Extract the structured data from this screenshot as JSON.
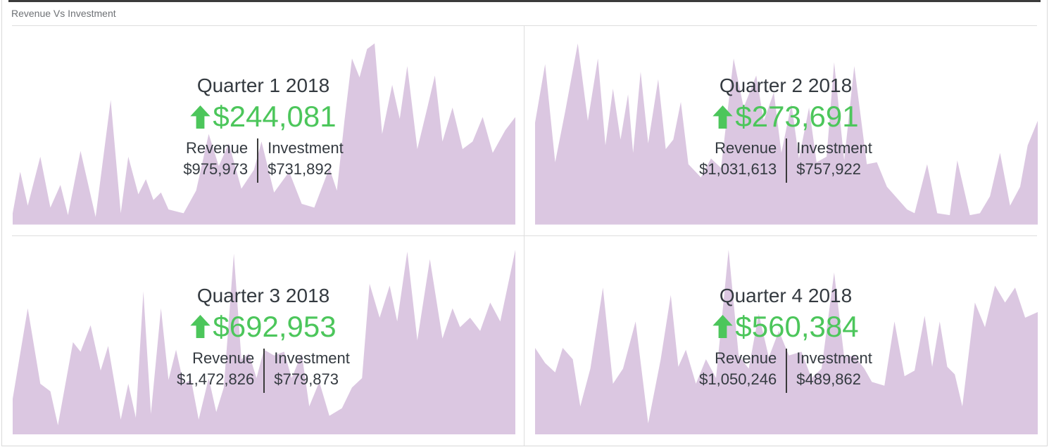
{
  "widget": {
    "title": "Revenue Vs Investment"
  },
  "labels": {
    "revenue": "Revenue",
    "investment": "Investment"
  },
  "colors": {
    "accent_green": "#4CC65B",
    "area_fill": "#DBC7E1",
    "top_border": "#3B3B3B",
    "card_border": "#D9D9D9",
    "divider": "#DEDEDE",
    "header_text": "#6E7175",
    "dark_text": "#343A40",
    "mini_divider": "#3A3A3A"
  },
  "chart_data": [
    {
      "type": "area",
      "title": "Quarter 1 2018",
      "change": "$244,081",
      "change_direction": "up",
      "series": [
        {
          "name": "Revenue",
          "total": "$975,973"
        },
        {
          "name": "Investment",
          "total": "$731,892"
        }
      ],
      "sparkline_units": "x: % of card width, y: % of sparkline height (estimated from pixels, no axes shown)",
      "sparkline": [
        [
          0,
          6
        ],
        [
          1.5,
          28
        ],
        [
          3,
          10
        ],
        [
          5.5,
          36
        ],
        [
          7.5,
          9
        ],
        [
          9.5,
          21
        ],
        [
          11,
          5
        ],
        [
          13.5,
          39
        ],
        [
          16.5,
          4
        ],
        [
          19.5,
          66
        ],
        [
          21.5,
          6
        ],
        [
          23,
          36
        ],
        [
          25,
          16
        ],
        [
          26.5,
          24
        ],
        [
          28,
          13
        ],
        [
          29.5,
          17
        ],
        [
          31,
          8
        ],
        [
          34,
          6
        ],
        [
          36.5,
          18
        ],
        [
          39,
          48
        ],
        [
          41,
          31
        ],
        [
          43,
          43
        ],
        [
          45.5,
          19
        ],
        [
          48,
          29
        ],
        [
          49.5,
          44
        ],
        [
          52,
          17
        ],
        [
          55,
          28
        ],
        [
          57.5,
          11
        ],
        [
          60,
          9
        ],
        [
          63,
          30
        ],
        [
          64.5,
          18
        ],
        [
          66,
          55
        ],
        [
          67.5,
          88
        ],
        [
          69,
          78
        ],
        [
          70.5,
          93
        ],
        [
          72,
          96
        ],
        [
          73.5,
          48
        ],
        [
          75.5,
          74
        ],
        [
          77,
          56
        ],
        [
          78.5,
          84
        ],
        [
          80.5,
          40
        ],
        [
          82.5,
          62
        ],
        [
          84,
          79
        ],
        [
          85.5,
          44
        ],
        [
          87.5,
          62
        ],
        [
          89.5,
          40
        ],
        [
          91.5,
          44
        ],
        [
          93.5,
          57
        ],
        [
          95.5,
          38
        ],
        [
          98,
          50
        ],
        [
          100,
          57
        ]
      ]
    },
    {
      "type": "area",
      "title": "Quarter 2 2018",
      "change": "$273,691",
      "change_direction": "up",
      "series": [
        {
          "name": "Revenue",
          "total": "$1,031,613"
        },
        {
          "name": "Investment",
          "total": "$757,922"
        }
      ],
      "sparkline_units": "x: % of card width, y: % of sparkline height (estimated from pixels, no axes shown)",
      "sparkline": [
        [
          0,
          54
        ],
        [
          2,
          85
        ],
        [
          4,
          33
        ],
        [
          6,
          60
        ],
        [
          8.5,
          96
        ],
        [
          10.5,
          55
        ],
        [
          12.5,
          88
        ],
        [
          14,
          42
        ],
        [
          15.5,
          72
        ],
        [
          17,
          45
        ],
        [
          18.5,
          69
        ],
        [
          19.5,
          38
        ],
        [
          21,
          81
        ],
        [
          22.5,
          43
        ],
        [
          24.5,
          77
        ],
        [
          26,
          40
        ],
        [
          27.5,
          45
        ],
        [
          29,
          65
        ],
        [
          30.5,
          32
        ],
        [
          33,
          25
        ],
        [
          35,
          35
        ],
        [
          37,
          30
        ],
        [
          39.5,
          88
        ],
        [
          41.5,
          62
        ],
        [
          44,
          79
        ],
        [
          45.5,
          55
        ],
        [
          47.5,
          70
        ],
        [
          49,
          38
        ],
        [
          51,
          64
        ],
        [
          52.5,
          35
        ],
        [
          54.5,
          62
        ],
        [
          56,
          33
        ],
        [
          58,
          36
        ],
        [
          59.5,
          86
        ],
        [
          61.5,
          34
        ],
        [
          63.5,
          84
        ],
        [
          66,
          32
        ],
        [
          68,
          33
        ],
        [
          70,
          20
        ],
        [
          72,
          14
        ],
        [
          74,
          8
        ],
        [
          75.5,
          6
        ],
        [
          78,
          32
        ],
        [
          80,
          6
        ],
        [
          82.5,
          5
        ],
        [
          84,
          34
        ],
        [
          86.5,
          5
        ],
        [
          88.5,
          6
        ],
        [
          90.5,
          15
        ],
        [
          92.5,
          38
        ],
        [
          94.5,
          10
        ],
        [
          96.5,
          20
        ],
        [
          98,
          42
        ],
        [
          100,
          55
        ]
      ]
    },
    {
      "type": "area",
      "title": "Quarter 3 2018",
      "change": "$692,953",
      "change_direction": "up",
      "series": [
        {
          "name": "Revenue",
          "total": "$1,472,826"
        },
        {
          "name": "Investment",
          "total": "$779,873"
        }
      ],
      "sparkline_units": "x: % of card width, y: % of sparkline height (estimated from pixels, no axes shown)",
      "sparkline": [
        [
          0,
          19
        ],
        [
          3,
          67
        ],
        [
          5.5,
          27
        ],
        [
          7.5,
          23
        ],
        [
          9,
          5
        ],
        [
          12,
          49
        ],
        [
          13.5,
          44
        ],
        [
          15.5,
          58
        ],
        [
          17.5,
          34
        ],
        [
          19,
          47
        ],
        [
          21.5,
          8
        ],
        [
          23,
          27
        ],
        [
          24.5,
          9
        ],
        [
          26,
          76
        ],
        [
          27.5,
          11
        ],
        [
          29.5,
          67
        ],
        [
          31,
          29
        ],
        [
          32.5,
          45
        ],
        [
          34,
          27
        ],
        [
          35.5,
          29
        ],
        [
          37,
          8
        ],
        [
          39,
          30
        ],
        [
          40.5,
          12
        ],
        [
          42,
          25
        ],
        [
          44,
          96
        ],
        [
          45.5,
          40
        ],
        [
          47,
          43
        ],
        [
          48.5,
          30
        ],
        [
          50,
          45
        ],
        [
          52,
          42
        ],
        [
          54,
          44
        ],
        [
          55.5,
          30
        ],
        [
          57.5,
          43
        ],
        [
          59,
          15
        ],
        [
          61,
          28
        ],
        [
          63,
          10
        ],
        [
          65.5,
          14
        ],
        [
          67.5,
          25
        ],
        [
          69.5,
          30
        ],
        [
          71,
          80
        ],
        [
          73,
          62
        ],
        [
          75,
          79
        ],
        [
          76.5,
          60
        ],
        [
          78.5,
          97
        ],
        [
          80.5,
          50
        ],
        [
          83,
          93
        ],
        [
          85.5,
          51
        ],
        [
          87.5,
          67
        ],
        [
          89,
          57
        ],
        [
          91,
          62
        ],
        [
          93,
          55
        ],
        [
          95,
          70
        ],
        [
          97,
          60
        ],
        [
          100,
          98
        ]
      ]
    },
    {
      "type": "area",
      "title": "Quarter 4 2018",
      "change": "$560,384",
      "change_direction": "up",
      "series": [
        {
          "name": "Revenue",
          "total": "$1,050,246"
        },
        {
          "name": "Investment",
          "total": "$489,862"
        }
      ],
      "sparkline_units": "x: % of card width, y: % of sparkline height (estimated from pixels, no axes shown)",
      "sparkline": [
        [
          0,
          46
        ],
        [
          2,
          38
        ],
        [
          4,
          33
        ],
        [
          5.5,
          46
        ],
        [
          7.5,
          40
        ],
        [
          9,
          15
        ],
        [
          11,
          35
        ],
        [
          13.5,
          78
        ],
        [
          15.5,
          27
        ],
        [
          17.5,
          35
        ],
        [
          20,
          60
        ],
        [
          22.5,
          6
        ],
        [
          25,
          40
        ],
        [
          27,
          74
        ],
        [
          28.5,
          36
        ],
        [
          30,
          45
        ],
        [
          32,
          27
        ],
        [
          34,
          40
        ],
        [
          36,
          30
        ],
        [
          38.5,
          98
        ],
        [
          40.5,
          42
        ],
        [
          42.5,
          35
        ],
        [
          44.5,
          64
        ],
        [
          46.5,
          41
        ],
        [
          48.5,
          55
        ],
        [
          50.5,
          42
        ],
        [
          53,
          44
        ],
        [
          55,
          30
        ],
        [
          57,
          35
        ],
        [
          59.5,
          86
        ],
        [
          61.5,
          41
        ],
        [
          63.5,
          42
        ],
        [
          65.5,
          35
        ],
        [
          67,
          28
        ],
        [
          69.5,
          26
        ],
        [
          71.5,
          60
        ],
        [
          73.5,
          31
        ],
        [
          75.5,
          34
        ],
        [
          77.5,
          63
        ],
        [
          79,
          36
        ],
        [
          80.5,
          60
        ],
        [
          82,
          36
        ],
        [
          83.5,
          32
        ],
        [
          85,
          15
        ],
        [
          87.5,
          70
        ],
        [
          89.5,
          57
        ],
        [
          91.5,
          79
        ],
        [
          93.5,
          70
        ],
        [
          95.5,
          78
        ],
        [
          97.5,
          62
        ],
        [
          100,
          65
        ]
      ]
    }
  ]
}
